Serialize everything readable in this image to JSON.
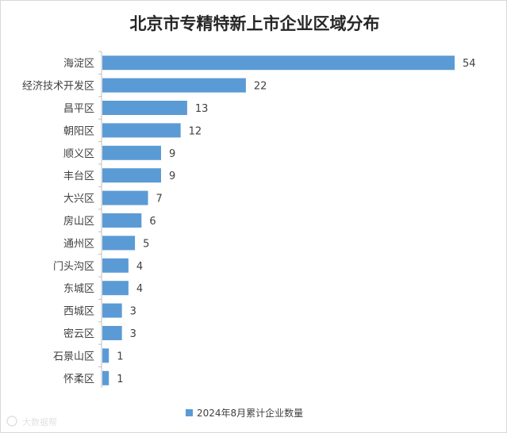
{
  "chart_data": {
    "type": "bar",
    "orientation": "horizontal",
    "title": "北京市专精特新上市企业区域分布",
    "categories": [
      "海淀区",
      "经济技术开发区",
      "昌平区",
      "朝阳区",
      "顺义区",
      "丰台区",
      "大兴区",
      "房山区",
      "通州区",
      "门头沟区",
      "东城区",
      "西城区",
      "密云区",
      "石景山区",
      "怀柔区"
    ],
    "series": [
      {
        "name": "2024年8月累计企业数量",
        "values": [
          54,
          22,
          13,
          12,
          9,
          9,
          7,
          6,
          5,
          4,
          4,
          3,
          3,
          1,
          1
        ],
        "color": "#5b9bd5"
      }
    ],
    "xlim": [
      0,
      54
    ],
    "grid": false,
    "data_labels": true,
    "legend_position": "bottom"
  },
  "watermark": {
    "icon": "logo-icon",
    "text": "大数据帮"
  }
}
